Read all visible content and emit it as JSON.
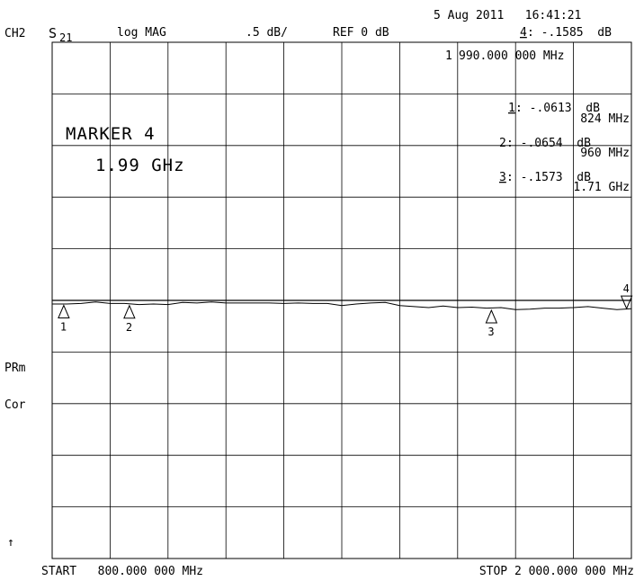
{
  "header": {
    "channel": "CH2",
    "param_base": "S",
    "param_sub": "21",
    "format": "log MAG",
    "scale": ".5 dB/",
    "ref": "REF 0 dB",
    "datetime": "5 Aug 2011   16:41:21",
    "active_marker_num": "4",
    "active_marker_value": ": -.1585  dB"
  },
  "active_marker_freq": {
    "num": "1",
    "value": "990.000 000 MHz"
  },
  "marker_box": {
    "title": "MARKER 4",
    "value": "1.99 GHz"
  },
  "marker_readouts": [
    {
      "num": "1",
      "db": ": -.0613  dB",
      "freq": "824 MHz"
    },
    {
      "num": "2",
      "db": ": -.0654  dB",
      "freq": "960 MHz"
    },
    {
      "num": "3",
      "db": ": -.1573  dB",
      "freq": "1.71 GHz"
    }
  ],
  "side": {
    "prm": "PRm",
    "cor": "Cor",
    "arrow": "↑"
  },
  "footer": {
    "start": "START   800.000 000 MHz",
    "stop": "STOP 2 000.000 000 MHz"
  },
  "chart_data": {
    "type": "line",
    "xlabel": "",
    "ylabel": "",
    "xlim": [
      800,
      2000
    ],
    "x_unit": "MHz",
    "ylim": [
      -5.0,
      5.0
    ],
    "y_unit": "dB",
    "ref_db": 0,
    "divisions": {
      "x": 10,
      "y": 10
    },
    "grid": true,
    "series": [
      {
        "x": [
          800,
          830,
          860,
          890,
          920,
          950,
          980,
          1010,
          1040,
          1070,
          1100,
          1130,
          1160,
          1190,
          1220,
          1250,
          1280,
          1310,
          1340,
          1370,
          1400,
          1430,
          1460,
          1490,
          1520,
          1550,
          1580,
          1610,
          1640,
          1670,
          1700,
          1730,
          1760,
          1790,
          1820,
          1850,
          1880,
          1910,
          1940,
          1970,
          2000
        ],
        "values": [
          -0.07,
          -0.07,
          -0.06,
          -0.03,
          -0.06,
          -0.06,
          -0.08,
          -0.07,
          -0.08,
          -0.04,
          -0.05,
          -0.03,
          -0.05,
          -0.05,
          -0.05,
          -0.05,
          -0.06,
          -0.05,
          -0.06,
          -0.06,
          -0.1,
          -0.07,
          -0.05,
          -0.04,
          -0.1,
          -0.12,
          -0.14,
          -0.11,
          -0.14,
          -0.13,
          -0.15,
          -0.14,
          -0.18,
          -0.17,
          -0.15,
          -0.15,
          -0.14,
          -0.12,
          -0.15,
          -0.18,
          -0.16
        ]
      }
    ],
    "markers": [
      {
        "label": "1",
        "x": 824,
        "y": -0.0613
      },
      {
        "label": "2",
        "x": 960,
        "y": -0.0654
      },
      {
        "label": "3",
        "x": 1710,
        "y": -0.1573
      },
      {
        "label": "4",
        "x": 1990,
        "y": -0.1585
      }
    ]
  }
}
